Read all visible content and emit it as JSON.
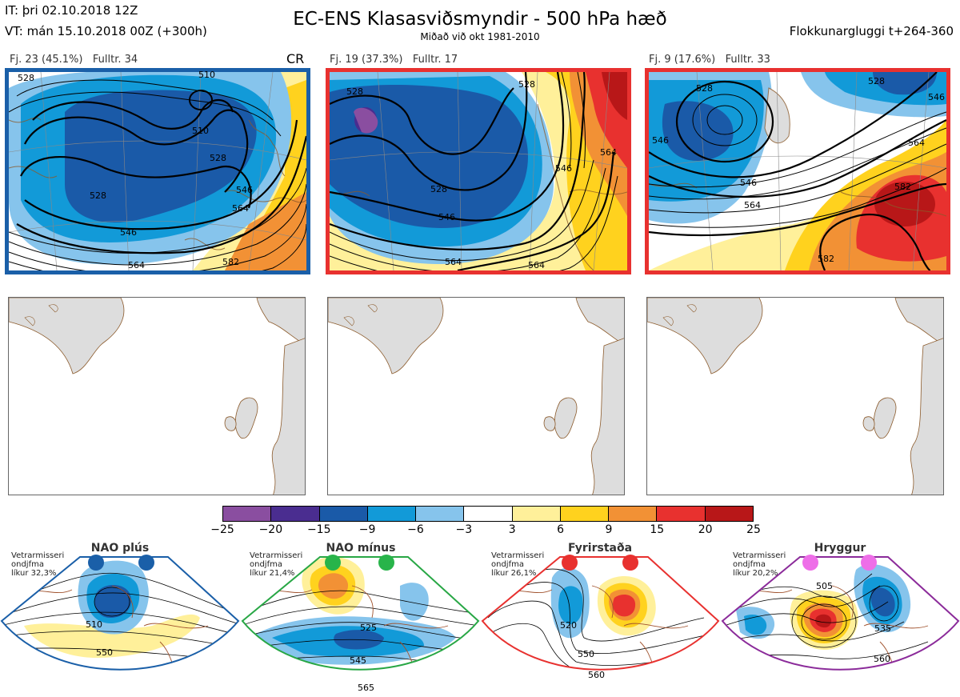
{
  "header": {
    "it_line": "IT: þri 02.10.2018 12Z",
    "vt_line": "VT: mán 15.10.2018 00Z  (+300h)",
    "title": "EC-ENS Klasasviðsmyndir - 500 hPa hæð",
    "subtitle": "Miðað við okt 1981-2010",
    "window": "Flokkunargluggi t+264-360"
  },
  "clusters": [
    {
      "label": "Fj. 23 (45.1%)",
      "member": "Fulltr. 34",
      "tag": "CR",
      "border_color": "#1a5fa8",
      "contour_labels": [
        "528",
        "510",
        "510",
        "528",
        "546",
        "564",
        "528",
        "546",
        "564",
        "582"
      ]
    },
    {
      "label": "Fj. 19 (37.3%)",
      "member": "Fulltr. 17",
      "tag": "",
      "border_color": "#e8312f",
      "contour_labels": [
        "528",
        "528",
        "528",
        "546",
        "564",
        "546",
        "564",
        "564"
      ]
    },
    {
      "label": "Fj. 9 (17.6%)",
      "member": "Fulltr. 33",
      "tag": "",
      "border_color": "#e8312f",
      "contour_labels": [
        "528",
        "546",
        "564",
        "546",
        "564",
        "582",
        "582",
        "528",
        "546"
      ]
    }
  ],
  "colorbar": {
    "ticks": [
      "−25",
      "−20",
      "−15",
      "−9",
      "−6",
      "−3",
      "3",
      "6",
      "9",
      "15",
      "20",
      "25"
    ],
    "colors": [
      "#8a4ea0",
      "#4a2d90",
      "#1a5aa8",
      "#129ad8",
      "#86c4ec",
      "#ffffff",
      "#fff09a",
      "#ffd21e",
      "#f29135",
      "#e8312f",
      "#b81718"
    ]
  },
  "regimes": [
    {
      "name": "NAO plús",
      "climate_lines": [
        "Vetrarmisseri",
        "ondjfma",
        "líkur 32,3%"
      ],
      "border_color": "#1a5fa8",
      "dot_color": "#1a5fa8",
      "contour_labels": [
        "510",
        "550"
      ]
    },
    {
      "name": "NAO mínus",
      "climate_lines": [
        "Vetrarmisseri",
        "ondjfma",
        "líkur 21,4%"
      ],
      "border_color": "#28a745",
      "dot_color": "#28b44a",
      "contour_labels": [
        "525",
        "545",
        "565"
      ]
    },
    {
      "name": "Fyrirstaða",
      "climate_lines": [
        "Vetrarmisseri",
        "ondjfma",
        "líkur 26,1%"
      ],
      "border_color": "#e8312f",
      "dot_color": "#e8312f",
      "contour_labels": [
        "520",
        "550",
        "560"
      ]
    },
    {
      "name": "Hryggur",
      "climate_lines": [
        "Vetrarmisseri",
        "ondjfma",
        "líkur 20,2%"
      ],
      "border_color": "#8b2b9a",
      "dot_color": "#ee6ee8",
      "contour_labels": [
        "505",
        "535",
        "560"
      ]
    }
  ]
}
